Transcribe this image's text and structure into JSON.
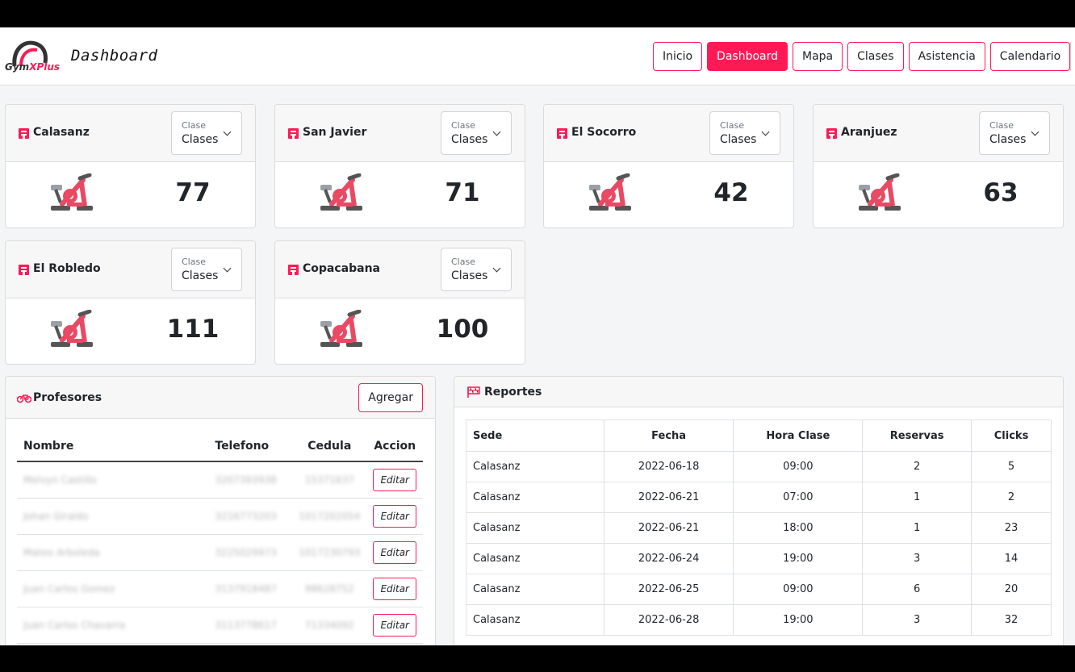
{
  "header": {
    "title": "Dashboard",
    "logo_text": "Gym",
    "logo_accent": "Plus",
    "nav": [
      {
        "label": "Inicio",
        "active": false
      },
      {
        "label": "Dashboard",
        "active": true
      },
      {
        "label": "Mapa",
        "active": false
      },
      {
        "label": "Clases",
        "active": false
      },
      {
        "label": "Asistencia",
        "active": false
      },
      {
        "label": "Calendario",
        "active": false
      }
    ]
  },
  "colors": {
    "accent": "#ff1a55",
    "background": "#f4f5f7"
  },
  "gyms": [
    {
      "name": "Calasanz",
      "select_label": "Clase",
      "select_value": "Clases",
      "count": "77",
      "icon": "building-icon"
    },
    {
      "name": "San Javier",
      "select_label": "Clase",
      "select_value": "Clases",
      "count": "71",
      "icon": "building-icon"
    },
    {
      "name": "El Socorro",
      "select_label": "Clase",
      "select_value": "Clases",
      "count": "42",
      "icon": "building-icon"
    },
    {
      "name": "Aranjuez",
      "select_label": "Clase",
      "select_value": "Clases",
      "count": "63",
      "icon": "building-icon"
    },
    {
      "name": "El Robledo",
      "select_label": "Clase",
      "select_value": "Clases",
      "count": "111",
      "icon": "building-icon"
    },
    {
      "name": "Copacabana",
      "select_label": "Clase",
      "select_value": "Clases",
      "count": "100",
      "icon": "building-icon"
    }
  ],
  "profesores": {
    "title": "Profesores",
    "icon": "bicycle-icon",
    "add_label": "Agregar",
    "columns": [
      "Nombre",
      "Telefono",
      "Cedula",
      "Accion"
    ],
    "rows": [
      {
        "nombre": "Melvyn Castillo",
        "telefono": "3207393938",
        "cedula": "15371637",
        "accion": "Editar"
      },
      {
        "nombre": "Johan Giraldo",
        "telefono": "3216773203",
        "cedula": "1017202054",
        "accion": "Editar"
      },
      {
        "nombre": "Mateo Arboleda",
        "telefono": "3225029973",
        "cedula": "1017230793",
        "accion": "Editar"
      },
      {
        "nombre": "Juan Carlos Gomez",
        "telefono": "3137918487",
        "cedula": "98628752",
        "accion": "Editar"
      },
      {
        "nombre": "Juan Carlos Chavarra",
        "telefono": "3113778617",
        "cedula": "71334092",
        "accion": "Editar"
      }
    ]
  },
  "reportes": {
    "title": "Reportes",
    "icon": "flag-icon",
    "columns": [
      "Sede",
      "Fecha",
      "Hora Clase",
      "Reservas",
      "Clicks"
    ],
    "rows": [
      {
        "sede": "Calasanz",
        "fecha": "2022-06-18",
        "hora": "09:00",
        "reservas": "2",
        "clicks": "5"
      },
      {
        "sede": "Calasanz",
        "fecha": "2022-06-21",
        "hora": "07:00",
        "reservas": "1",
        "clicks": "2"
      },
      {
        "sede": "Calasanz",
        "fecha": "2022-06-21",
        "hora": "18:00",
        "reservas": "1",
        "clicks": "23"
      },
      {
        "sede": "Calasanz",
        "fecha": "2022-06-24",
        "hora": "19:00",
        "reservas": "3",
        "clicks": "14"
      },
      {
        "sede": "Calasanz",
        "fecha": "2022-06-25",
        "hora": "09:00",
        "reservas": "6",
        "clicks": "20"
      },
      {
        "sede": "Calasanz",
        "fecha": "2022-06-28",
        "hora": "19:00",
        "reservas": "3",
        "clicks": "32"
      }
    ]
  }
}
